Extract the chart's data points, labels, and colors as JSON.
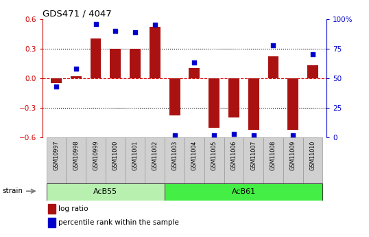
{
  "title": "GDS471 / 4047",
  "samples": [
    "GSM10997",
    "GSM10998",
    "GSM10999",
    "GSM11000",
    "GSM11001",
    "GSM11002",
    "GSM11003",
    "GSM11004",
    "GSM11005",
    "GSM11006",
    "GSM11007",
    "GSM11008",
    "GSM11009",
    "GSM11010"
  ],
  "log_ratio": [
    -0.05,
    0.02,
    0.4,
    0.3,
    0.3,
    0.52,
    -0.38,
    0.1,
    -0.5,
    -0.4,
    -0.52,
    0.22,
    -0.52,
    0.13
  ],
  "percentile_rank": [
    43,
    58,
    96,
    90,
    89,
    95,
    2,
    63,
    2,
    3,
    2,
    78,
    2,
    70
  ],
  "groups": [
    {
      "label": "AcB55",
      "start": 0,
      "end": 5,
      "color": "#b8f0b0"
    },
    {
      "label": "AcB61",
      "start": 6,
      "end": 13,
      "color": "#44ee44"
    }
  ],
  "bar_color": "#aa1111",
  "dot_color": "#0000cc",
  "ylim_left": [
    -0.6,
    0.6
  ],
  "ylim_right": [
    0,
    100
  ],
  "yticks_left": [
    -0.6,
    -0.3,
    0.0,
    0.3,
    0.6
  ],
  "yticks_right": [
    0,
    25,
    50,
    75,
    100
  ],
  "ytick_labels_right": [
    "0",
    "25",
    "50",
    "75",
    "100%"
  ],
  "hline_dotted": [
    0.3,
    -0.3
  ],
  "hline_dashed_red": 0.0,
  "sample_box_color": "#d0d0d0",
  "sample_box_edge": "#999999",
  "strain_label": "strain",
  "legend_items": [
    "log ratio",
    "percentile rank within the sample"
  ]
}
